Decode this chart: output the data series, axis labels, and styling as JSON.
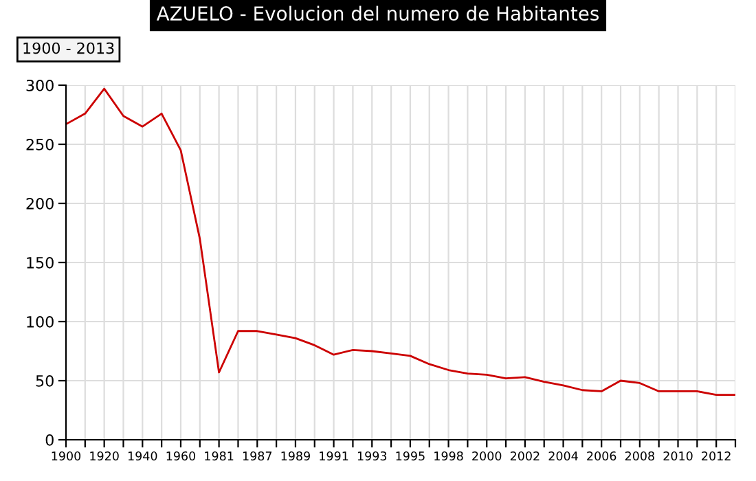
{
  "chart_data": {
    "type": "line",
    "title": "AZUELO - Evolucion del numero de Habitantes",
    "subtitle": "1900 - 2013",
    "categories": [
      "1900",
      null,
      "1920",
      null,
      "1940",
      null,
      "1960",
      null,
      "1981",
      null,
      "1987",
      null,
      "1989",
      null,
      "1991",
      null,
      "1993",
      null,
      "1995",
      null,
      "1998",
      null,
      "2000",
      null,
      "2002",
      null,
      "2004",
      null,
      "2006",
      null,
      "2008",
      null,
      "2010",
      null,
      "2012",
      null
    ],
    "series": [
      {
        "color": "#cc0000",
        "values": [
          267,
          276,
          297,
          274,
          265,
          276,
          245,
          170,
          57,
          92,
          92,
          89,
          86,
          80,
          72,
          76,
          75,
          73,
          71,
          64,
          59,
          56,
          55,
          52,
          53,
          49,
          46,
          42,
          41,
          50,
          48,
          41,
          41,
          41,
          38,
          38
        ]
      }
    ],
    "ylim": [
      0,
      300
    ],
    "yticks": [
      0,
      50,
      100,
      150,
      200,
      250,
      300
    ],
    "grid": true,
    "marker": "none",
    "line_style": "solid"
  }
}
